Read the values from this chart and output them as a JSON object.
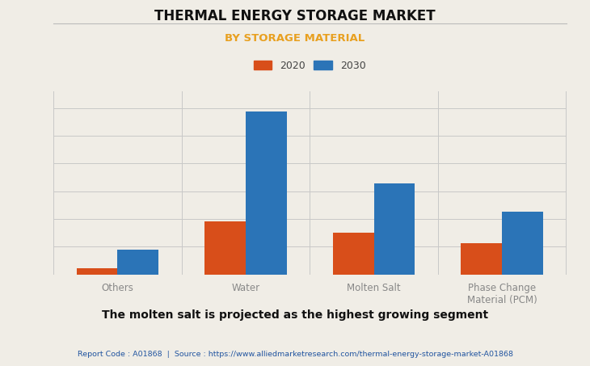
{
  "title": "THERMAL ENERGY STORAGE MARKET",
  "subtitle": "BY STORAGE MATERIAL",
  "categories": [
    "Others",
    "Water",
    "Molten Salt",
    "Phase Change\nMaterial (PCM)"
  ],
  "values_2020": [
    0.4,
    3.2,
    2.5,
    1.9
  ],
  "values_2030": [
    1.5,
    9.8,
    5.5,
    3.8
  ],
  "color_2020": "#d84e1a",
  "color_2030": "#2b74b7",
  "subtitle_color": "#e8a020",
  "title_color": "#111111",
  "bg_color": "#f0ede6",
  "grid_color": "#c8c8c8",
  "bar_width": 0.32,
  "ylim": [
    0,
    11.0
  ],
  "legend_labels": [
    "2020",
    "2030"
  ],
  "footer_text": "Report Code : A01868  |  Source : https://www.alliedmarketresearch.com/thermal-energy-storage-market-A01868",
  "caption_text": "The molten salt is projected as the highest growing segment",
  "footer_color": "#2255a0",
  "caption_color": "#111111",
  "tick_label_color": "#888888",
  "sep_line_color": "#bbbbbb"
}
